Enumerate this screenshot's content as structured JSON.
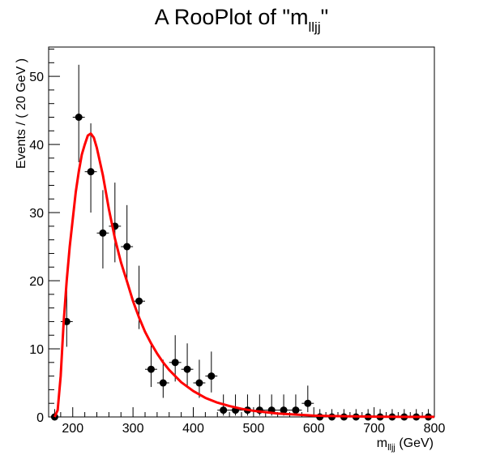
{
  "chart_data": {
    "type": "scatter",
    "title": "A RooPlot of \"m",
    "title_sub": "lljj",
    "title_close": "\"",
    "xlabel": "m",
    "xlabel_sub": "lljj",
    "xlabel_unit": " (GeV)",
    "ylabel": "Events / ( 20 GeV )",
    "xlim": [
      160,
      800
    ],
    "ylim": [
      0,
      54.3
    ],
    "x_ticks": [
      200,
      300,
      400,
      500,
      600,
      700,
      800
    ],
    "y_ticks": [
      0,
      10,
      20,
      30,
      40,
      50
    ],
    "bin_width": 20,
    "grid": false,
    "series": [
      {
        "type": "points",
        "color": "#000000",
        "points": [
          {
            "x": 170,
            "y": 0,
            "elo": 0,
            "ehi": 1.15
          },
          {
            "x": 190,
            "y": 14,
            "elo": 3.7,
            "ehi": 4.8
          },
          {
            "x": 210,
            "y": 44,
            "elo": 6.6,
            "ehi": 7.7
          },
          {
            "x": 230,
            "y": 36,
            "elo": 6.0,
            "ehi": 7.1
          },
          {
            "x": 250,
            "y": 27,
            "elo": 5.2,
            "ehi": 6.3
          },
          {
            "x": 270,
            "y": 28,
            "elo": 5.3,
            "ehi": 6.4
          },
          {
            "x": 290,
            "y": 25,
            "elo": 5.0,
            "ehi": 6.1
          },
          {
            "x": 310,
            "y": 17,
            "elo": 4.1,
            "ehi": 5.2
          },
          {
            "x": 330,
            "y": 7,
            "elo": 2.6,
            "ehi": 3.8
          },
          {
            "x": 350,
            "y": 5,
            "elo": 2.2,
            "ehi": 3.4
          },
          {
            "x": 370,
            "y": 8,
            "elo": 2.8,
            "ehi": 4.0
          },
          {
            "x": 390,
            "y": 7,
            "elo": 2.6,
            "ehi": 3.8
          },
          {
            "x": 410,
            "y": 5,
            "elo": 2.2,
            "ehi": 3.4
          },
          {
            "x": 430,
            "y": 6,
            "elo": 2.4,
            "ehi": 3.6
          },
          {
            "x": 450,
            "y": 1,
            "elo": 0.8,
            "ehi": 2.3
          },
          {
            "x": 470,
            "y": 1,
            "elo": 0.8,
            "ehi": 2.3
          },
          {
            "x": 490,
            "y": 1,
            "elo": 0.8,
            "ehi": 2.3
          },
          {
            "x": 510,
            "y": 1,
            "elo": 0.8,
            "ehi": 2.3
          },
          {
            "x": 530,
            "y": 1,
            "elo": 0.8,
            "ehi": 2.3
          },
          {
            "x": 550,
            "y": 1,
            "elo": 0.8,
            "ehi": 2.3
          },
          {
            "x": 570,
            "y": 1,
            "elo": 0.8,
            "ehi": 2.3
          },
          {
            "x": 590,
            "y": 2,
            "elo": 1.3,
            "ehi": 2.6
          },
          {
            "x": 610,
            "y": 0,
            "elo": 0,
            "ehi": 1.15
          },
          {
            "x": 630,
            "y": 0,
            "elo": 0,
            "ehi": 1.15
          },
          {
            "x": 650,
            "y": 0,
            "elo": 0,
            "ehi": 1.15
          },
          {
            "x": 670,
            "y": 0,
            "elo": 0,
            "ehi": 1.15
          },
          {
            "x": 690,
            "y": 0,
            "elo": 0,
            "ehi": 1.15
          },
          {
            "x": 710,
            "y": 0,
            "elo": 0,
            "ehi": 1.15
          },
          {
            "x": 730,
            "y": 0,
            "elo": 0,
            "ehi": 1.15
          },
          {
            "x": 750,
            "y": 0,
            "elo": 0,
            "ehi": 1.15
          },
          {
            "x": 770,
            "y": 0,
            "elo": 0,
            "ehi": 1.15
          },
          {
            "x": 790,
            "y": 0,
            "elo": 0,
            "ehi": 1.15
          }
        ]
      },
      {
        "type": "curve",
        "color": "#ff0000",
        "x": [
          170,
          175,
          180,
          185,
          190,
          195,
          200,
          205,
          210,
          215,
          220,
          225,
          230,
          235,
          240,
          250,
          260,
          270,
          280,
          290,
          300,
          310,
          320,
          330,
          340,
          350,
          360,
          380,
          400,
          420,
          440,
          460,
          480,
          500,
          520,
          540,
          560,
          580,
          600,
          620,
          650,
          700,
          750,
          800
        ],
        "y": [
          0,
          1,
          6,
          14,
          20,
          25,
          29,
          33,
          36,
          38.5,
          40,
          41.3,
          41.6,
          41,
          39.5,
          35.5,
          30.5,
          26.2,
          22.7,
          19.9,
          17,
          14.6,
          12.5,
          10.8,
          9.3,
          8,
          6.9,
          5.1,
          3.8,
          2.8,
          2.1,
          1.6,
          1.2,
          0.9,
          0.7,
          0.5,
          0.4,
          0.3,
          0.2,
          0.15,
          0.1,
          0.05,
          0.02,
          0.01
        ]
      }
    ]
  }
}
